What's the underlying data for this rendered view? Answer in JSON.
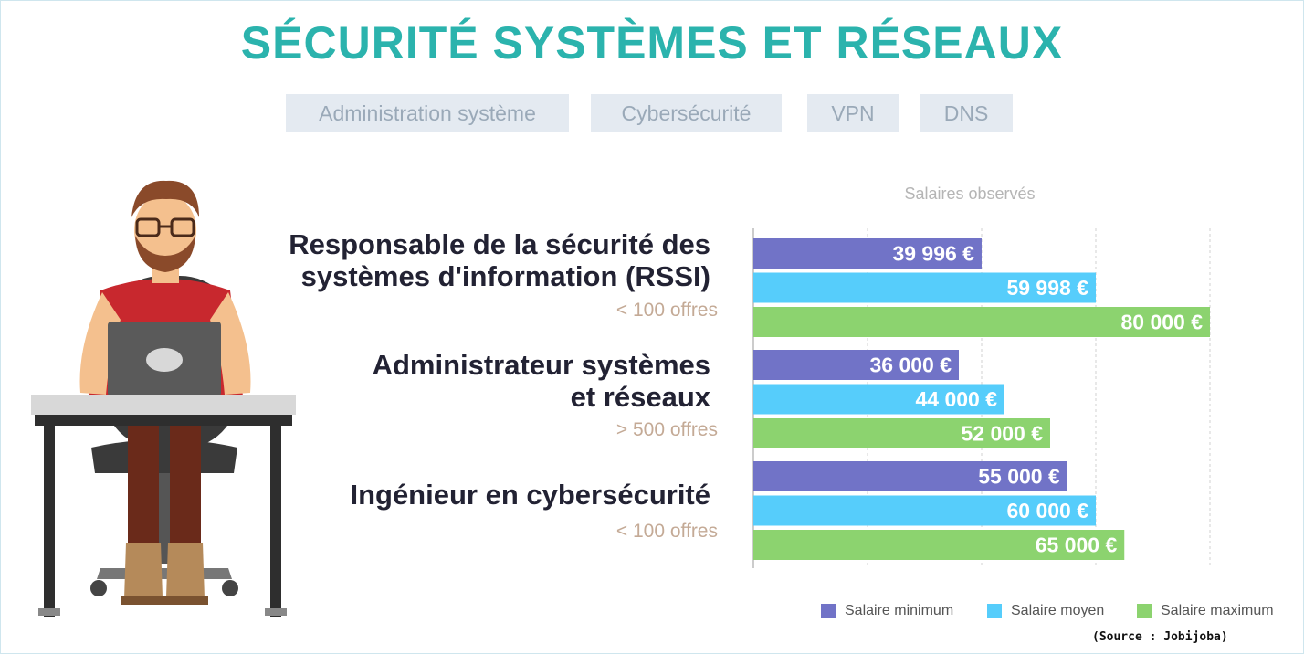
{
  "title": "SÉCURITÉ SYSTÈMES ET RÉSEAUX",
  "tags": [
    "Administration système",
    "Cybersécurité",
    "VPN",
    "DNS"
  ],
  "source": "(Source : Jobijoba)",
  "colors": {
    "title": "#2bb3ad",
    "minimum": "#7173c7",
    "moyen": "#56cdfb",
    "maximum": "#8cd36f"
  },
  "chart_data": {
    "type": "bar",
    "orientation": "horizontal",
    "title": "Salaires observés",
    "categories": [
      "Responsable de la sécurité des systèmes d'information (RSSI)",
      "Administrateur systèmes et réseaux",
      "Ingénieur en cybersécurité"
    ],
    "category_lines": [
      [
        "Responsable de la sécurité des",
        "systèmes d'information (RSSI)"
      ],
      [
        "Administrateur systèmes",
        "et réseaux"
      ],
      [
        "Ingénieur en cybersécurité"
      ]
    ],
    "offers": [
      "< 100 offres",
      "> 500 offres",
      "< 100 offres"
    ],
    "series": [
      {
        "name": "Salaire minimum",
        "values": [
          39996,
          36000,
          55000
        ],
        "labels": [
          "39 996 €",
          "36 000 €",
          "55 000 €"
        ]
      },
      {
        "name": "Salaire moyen",
        "values": [
          59998,
          44000,
          60000
        ],
        "labels": [
          "59 998 €",
          "44 000 €",
          "60 000 €"
        ]
      },
      {
        "name": "Salaire maximum",
        "values": [
          80000,
          52000,
          65000
        ],
        "labels": [
          "80 000 €",
          "52 000 €",
          "65 000 €"
        ]
      }
    ],
    "xlim": [
      0,
      80000
    ],
    "grid": true,
    "legend": "bottom-right"
  }
}
